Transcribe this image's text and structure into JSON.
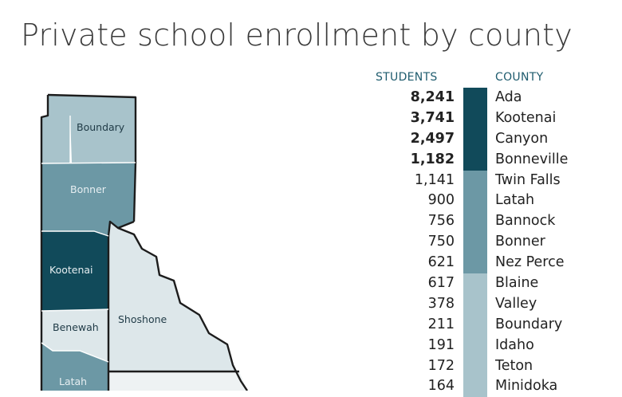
{
  "title": "Private school enrollment by county",
  "headers": {
    "students": "STUDENTS",
    "county": "COUNTY"
  },
  "tiers": {
    "dark": "#114a5a",
    "medium": "#6c98a5",
    "light": "#a8c3cb"
  },
  "rows": [
    {
      "students": "8,241",
      "county": "Ada",
      "tier": "dark"
    },
    {
      "students": "3,741",
      "county": "Kootenai",
      "tier": "dark"
    },
    {
      "students": "2,497",
      "county": "Canyon",
      "tier": "dark"
    },
    {
      "students": "1,182",
      "county": "Bonneville",
      "tier": "dark"
    },
    {
      "students": "1,141",
      "county": "Twin Falls",
      "tier": "medium"
    },
    {
      "students": "900",
      "county": "Latah",
      "tier": "medium"
    },
    {
      "students": "756",
      "county": "Bannock",
      "tier": "medium"
    },
    {
      "students": "750",
      "county": "Bonner",
      "tier": "medium"
    },
    {
      "students": "621",
      "county": "Nez Perce",
      "tier": "medium"
    },
    {
      "students": "617",
      "county": "Blaine",
      "tier": "light"
    },
    {
      "students": "378",
      "county": "Valley",
      "tier": "light"
    },
    {
      "students": "211",
      "county": "Boundary",
      "tier": "light"
    },
    {
      "students": "191",
      "county": "Idaho",
      "tier": "light"
    },
    {
      "students": "172",
      "county": "Teton",
      "tier": "light"
    },
    {
      "students": "164",
      "county": "Minidoka",
      "tier": "light"
    }
  ],
  "map": {
    "labels": {
      "boundary": "Boundary",
      "bonner": "Bonner",
      "kootenai": "Kootenai",
      "benewah": "Benewah",
      "shoshone": "Shoshone",
      "latah": "Latah"
    },
    "fills": {
      "boundary": "#a8c3cb",
      "bonner": "#6c98a5",
      "kootenai": "#114a5a",
      "benewah": "#dde7ea",
      "shoshone": "#dde7ea",
      "latah": "#6c98a5",
      "southern": "#eef2f3"
    }
  }
}
